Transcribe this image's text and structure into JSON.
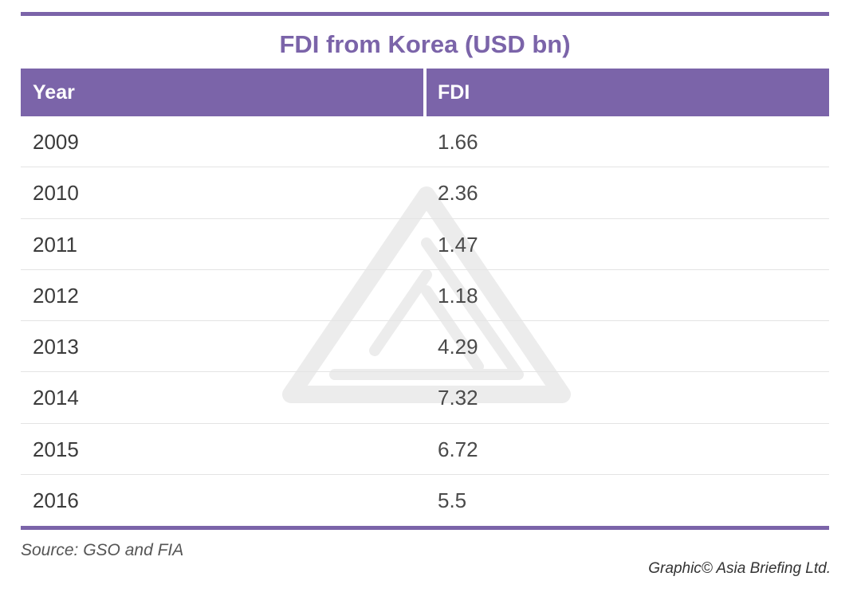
{
  "colors": {
    "accent": "#7b64a9"
  },
  "watermark_icon": "triangle-logo-icon",
  "chart_data": {
    "type": "table",
    "title": "FDI from Korea (USD bn)",
    "columns": [
      "Year",
      "FDI"
    ],
    "rows": [
      [
        "2009",
        "1.66"
      ],
      [
        "2010",
        "2.36"
      ],
      [
        "2011",
        "1.47"
      ],
      [
        "2012",
        "1.18"
      ],
      [
        "2013",
        "4.29"
      ],
      [
        "2014",
        "7.32"
      ],
      [
        "2015",
        "6.72"
      ],
      [
        "2016",
        "5.5"
      ]
    ]
  },
  "footer": {
    "source": "Source: GSO and FIA",
    "credit": "Graphic© Asia Briefing Ltd."
  }
}
